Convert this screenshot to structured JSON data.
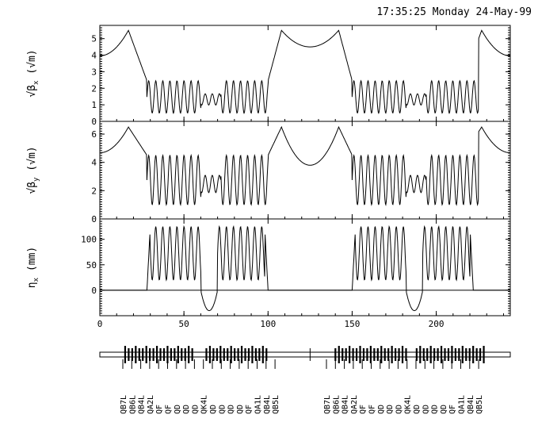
{
  "header": {
    "timestamp": "17:35:25 Monday 24-May-99"
  },
  "chart_data": {
    "type": "line",
    "shared_x": {
      "range": [
        0,
        244
      ],
      "ticks": [
        "0",
        "50",
        "100",
        "150",
        "200"
      ]
    },
    "panels": [
      {
        "ylabel": "√β_x (√m)",
        "ylabel_main": "√β",
        "ylabel_sub": "x",
        "ylabel_unit": "(√m)",
        "ylim": [
          0,
          5.8
        ],
        "yticks": [
          "0",
          "1",
          "2",
          "3",
          "4",
          "5"
        ],
        "arc_peaks": [
          5.5,
          5.5,
          5.5,
          5.5
        ],
        "arc_mid": 4.5,
        "fodo_max": 2.45,
        "fodo_min": 0.5
      },
      {
        "ylabel": "√β_y (√m)",
        "ylabel_main": "√β",
        "ylabel_sub": "y",
        "ylabel_unit": "(√m)",
        "ylim": [
          0,
          6.9
        ],
        "yticks": [
          "0",
          "2",
          "4",
          "6"
        ],
        "arc_peaks": [
          6.5,
          6.5,
          6.5,
          6.5
        ],
        "arc_mid": 3.8,
        "fodo_max": 4.5,
        "fodo_min": 1.0
      },
      {
        "ylabel": "η_x (mm)",
        "ylabel_main": "η",
        "ylabel_sub": "x",
        "ylabel_unit": "(mm)",
        "ylim": [
          -50,
          140
        ],
        "yticks": [
          "0",
          "50",
          "100"
        ],
        "fodo_max": 125,
        "fodo_min": 20,
        "dip_min": -40
      }
    ],
    "element_labels": [
      "QB7L",
      "QB6L",
      "QB4L",
      "QA2L",
      "QF",
      "QF",
      "QD",
      "QD",
      "QD",
      "QK4L",
      "QD",
      "QD",
      "QD",
      "QD",
      "QF",
      "QA1L",
      "QB4L",
      "QB5L",
      "QB7L",
      "QB6L",
      "QB4L",
      "QA2L",
      "QF",
      "QF",
      "QD",
      "QD",
      "QD",
      "QK4L",
      "QD",
      "QD",
      "QD",
      "QD",
      "QF",
      "QA1L",
      "QB4L",
      "QB5L"
    ]
  }
}
